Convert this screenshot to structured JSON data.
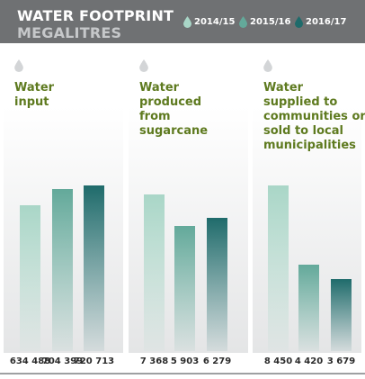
{
  "header": {
    "title": "WATER FOOTPRINT",
    "subtitle": "MEGALITRES"
  },
  "legend": [
    {
      "label": "2014/15",
      "color": "#a9d6c7"
    },
    {
      "label": "2015/16",
      "color": "#63a99a"
    },
    {
      "label": "2016/17",
      "color": "#1f6b6b"
    }
  ],
  "chart_data": [
    {
      "type": "bar",
      "title": "Water\ninput",
      "categories": [
        "2014/15",
        "2015/16",
        "2016/17"
      ],
      "values": [
        634488,
        704399,
        720713
      ],
      "value_labels": [
        "634 488",
        "704 399",
        "720 713"
      ]
    },
    {
      "type": "bar",
      "title": "Water\nproduced\nfrom\nsugarcane",
      "categories": [
        "2014/15",
        "2015/16",
        "2016/17"
      ],
      "values": [
        7368,
        5903,
        6279
      ],
      "value_labels": [
        "7 368",
        "5 903",
        "6 279"
      ]
    },
    {
      "type": "bar",
      "title": "Water\nsupplied to\ncommunities or\nsold to local\nmunicipalities",
      "categories": [
        "2014/15",
        "2015/16",
        "2016/17"
      ],
      "values": [
        8450,
        4420,
        3679
      ],
      "value_labels": [
        "8 450",
        "4 420",
        "3 679"
      ]
    }
  ],
  "colors": {
    "header_bg": "#6f7173",
    "title_text": "#5e7a1f",
    "drop_icon": "#d3d5d7"
  }
}
